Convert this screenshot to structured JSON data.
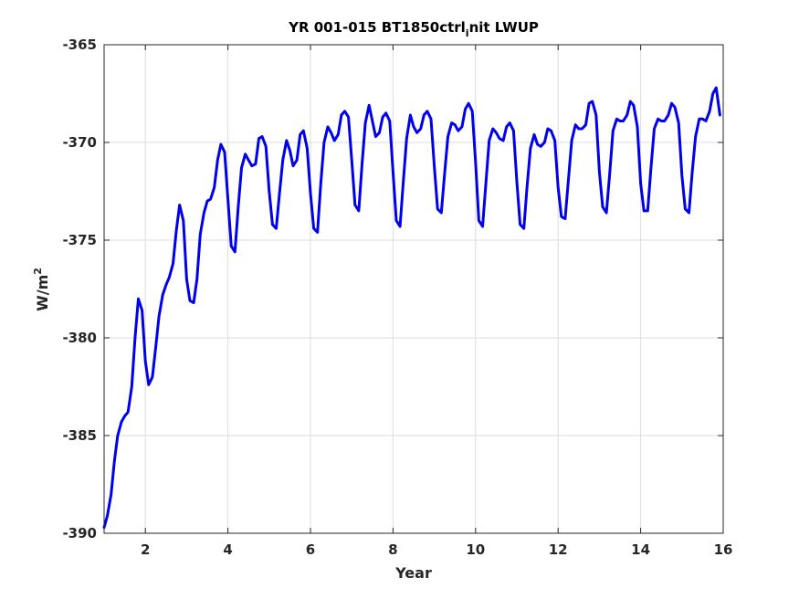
{
  "chart_data": {
    "type": "line",
    "title_main": "YR 001-015 BT1850ctrl",
    "title_sub": "i",
    "title_rest": "nit LWUP",
    "xlabel": "Year",
    "ylabel_base": "W/m",
    "ylabel_sup": "2",
    "xlim": [
      1,
      16
    ],
    "ylim": [
      -390,
      -365
    ],
    "xticks": [
      2,
      4,
      6,
      8,
      10,
      12,
      14,
      16
    ],
    "yticks": [
      -390,
      -385,
      -380,
      -375,
      -370,
      -365
    ],
    "xtick_labels": [
      "2",
      "4",
      "6",
      "8",
      "10",
      "12",
      "14",
      "16"
    ],
    "ytick_labels": [
      "-390",
      "-385",
      "-380",
      "-375",
      "-370",
      "-365"
    ],
    "grid": true,
    "line_color": "#0000ee",
    "series": [
      {
        "x": [
          1.0,
          1.08,
          1.17,
          1.25,
          1.33,
          1.42,
          1.5,
          1.58,
          1.67,
          1.75,
          1.83,
          1.92,
          2.0,
          2.08,
          2.17,
          2.25,
          2.33,
          2.42,
          2.5,
          2.58,
          2.67,
          2.75,
          2.83,
          2.92,
          3.0,
          3.08,
          3.17,
          3.25,
          3.33,
          3.42,
          3.5,
          3.58,
          3.67,
          3.75,
          3.83,
          3.92,
          4.0,
          4.08,
          4.17,
          4.25,
          4.33,
          4.42,
          4.5,
          4.58,
          4.67,
          4.75,
          4.83,
          4.92,
          5.0,
          5.08,
          5.17,
          5.25,
          5.33,
          5.42,
          5.5,
          5.58,
          5.67,
          5.75,
          5.83,
          5.92,
          6.0,
          6.08,
          6.17,
          6.25,
          6.33,
          6.42,
          6.5,
          6.58,
          6.67,
          6.75,
          6.83,
          6.92,
          7.0,
          7.08,
          7.17,
          7.25,
          7.33,
          7.42,
          7.5,
          7.58,
          7.67,
          7.75,
          7.83,
          7.92,
          8.0,
          8.08,
          8.17,
          8.25,
          8.33,
          8.42,
          8.5,
          8.58,
          8.67,
          8.75,
          8.83,
          8.92,
          9.0,
          9.08,
          9.17,
          9.25,
          9.33,
          9.42,
          9.5,
          9.58,
          9.67,
          9.75,
          9.83,
          9.92,
          10.0,
          10.08,
          10.17,
          10.25,
          10.33,
          10.42,
          10.5,
          10.58,
          10.67,
          10.75,
          10.83,
          10.92,
          11.0,
          11.08,
          11.17,
          11.25,
          11.33,
          11.42,
          11.5,
          11.58,
          11.67,
          11.75,
          11.83,
          11.92,
          12.0,
          12.08,
          12.17,
          12.25,
          12.33,
          12.42,
          12.5,
          12.58,
          12.67,
          12.75,
          12.83,
          12.92,
          13.0,
          13.08,
          13.17,
          13.25,
          13.33,
          13.42,
          13.5,
          13.58,
          13.67,
          13.75,
          13.83,
          13.92,
          14.0,
          14.08,
          14.17,
          14.25,
          14.33,
          14.42,
          14.5,
          14.58,
          14.67,
          14.75,
          14.83,
          14.92,
          15.0,
          15.08,
          15.17,
          15.25,
          15.33,
          15.42,
          15.5,
          15.58,
          15.67,
          15.75,
          15.83,
          15.92
        ],
        "y": [
          -389.7,
          -389.1,
          -388.0,
          -386.3,
          -385.0,
          -384.3,
          -384.0,
          -383.8,
          -382.5,
          -380.0,
          -378.0,
          -378.6,
          -381.2,
          -382.4,
          -382.0,
          -380.5,
          -378.9,
          -377.8,
          -377.3,
          -376.9,
          -376.2,
          -374.5,
          -373.2,
          -374.0,
          -377.0,
          -378.1,
          -378.2,
          -377.0,
          -374.7,
          -373.6,
          -373.0,
          -372.9,
          -372.3,
          -370.9,
          -370.1,
          -370.5,
          -372.9,
          -375.3,
          -375.6,
          -373.3,
          -371.3,
          -370.6,
          -370.9,
          -371.2,
          -371.1,
          -369.8,
          -369.7,
          -370.2,
          -372.5,
          -374.2,
          -374.4,
          -372.6,
          -370.9,
          -369.9,
          -370.4,
          -371.2,
          -370.9,
          -369.6,
          -369.4,
          -370.3,
          -372.6,
          -374.4,
          -374.6,
          -372.1,
          -370.0,
          -369.2,
          -369.5,
          -369.9,
          -369.6,
          -368.6,
          -368.4,
          -368.7,
          -370.9,
          -373.2,
          -373.5,
          -371.1,
          -369.0,
          -368.1,
          -368.9,
          -369.7,
          -369.5,
          -368.7,
          -368.5,
          -368.9,
          -371.5,
          -374.0,
          -374.3,
          -372.0,
          -369.8,
          -368.6,
          -369.2,
          -369.5,
          -369.3,
          -368.6,
          -368.4,
          -368.8,
          -371.2,
          -373.4,
          -373.6,
          -371.6,
          -369.7,
          -369.0,
          -369.1,
          -369.4,
          -369.2,
          -368.3,
          -368.0,
          -368.4,
          -371.0,
          -374.0,
          -374.3,
          -372.1,
          -369.9,
          -369.3,
          -369.5,
          -369.8,
          -369.9,
          -369.2,
          -369.0,
          -369.4,
          -372.0,
          -374.2,
          -374.4,
          -372.2,
          -370.3,
          -369.6,
          -370.1,
          -370.2,
          -370.0,
          -369.3,
          -369.4,
          -369.9,
          -372.3,
          -373.8,
          -373.9,
          -371.9,
          -369.9,
          -369.1,
          -369.3,
          -369.3,
          -369.1,
          -368.0,
          -367.9,
          -368.6,
          -371.5,
          -373.3,
          -373.6,
          -371.6,
          -369.4,
          -368.8,
          -368.9,
          -368.9,
          -368.6,
          -367.9,
          -368.1,
          -369.2,
          -372.1,
          -373.5,
          -373.5,
          -371.3,
          -369.3,
          -368.8,
          -368.9,
          -368.9,
          -368.6,
          -368.0,
          -368.2,
          -369.0,
          -371.7,
          -373.4,
          -373.6,
          -371.5,
          -369.7,
          -368.8,
          -368.8,
          -368.9,
          -368.4,
          -367.5,
          -367.2,
          -368.6
        ]
      }
    ]
  }
}
